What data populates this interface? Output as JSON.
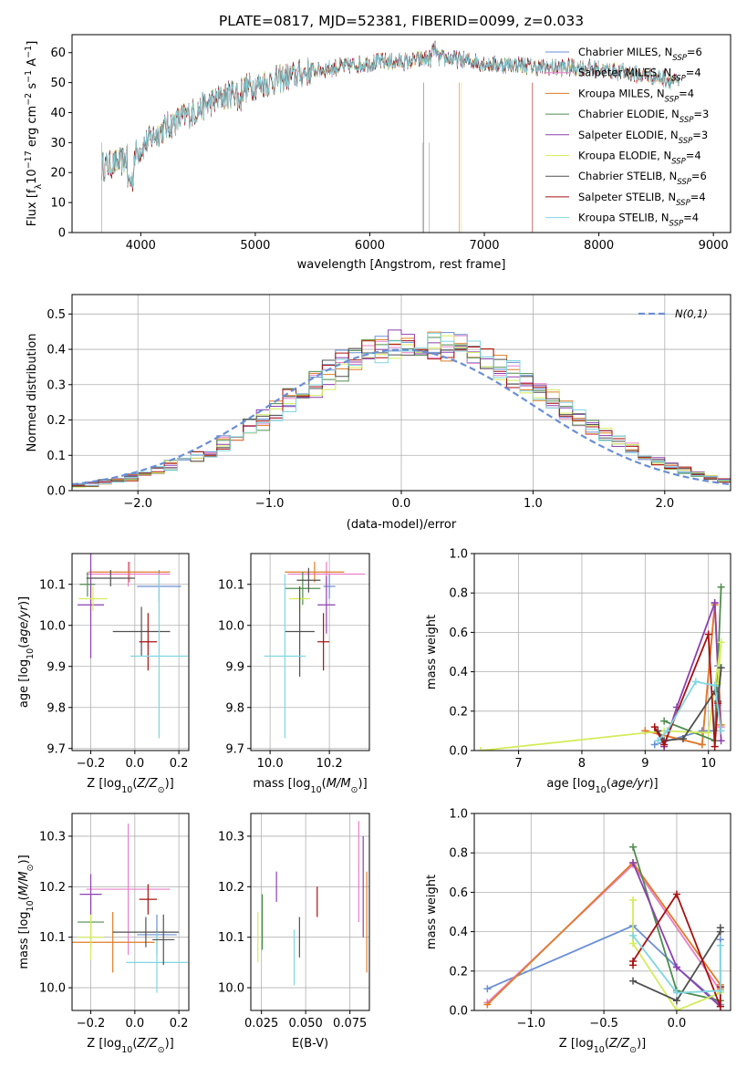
{
  "colors": {
    "chabrier_miles": "#6a8fd4",
    "salpeter_miles": "#e87fc8",
    "kroupa_miles": "#e07c24",
    "chabrier_elodie": "#4e8d4e",
    "salpeter_elodie": "#8e3fb0",
    "kroupa_elodie": "#d4ec5a",
    "chabrier_stelib": "#505050",
    "salpeter_stelib": "#a81010",
    "kroupa_stelib": "#7fd6e2"
  },
  "chart_data": [
    {
      "id": "spectrum",
      "type": "line",
      "title": "PLATE=0817, MJD=52381, FIBERID=0099, z=0.033",
      "xlabel": "wavelength [Angstrom, rest frame]",
      "ylabel_text": "Flux [f",
      "xlim": [
        3400,
        9150
      ],
      "ylim": [
        0,
        66
      ],
      "xticks": [
        4000,
        5000,
        6000,
        7000,
        8000,
        9000
      ],
      "yticks": [
        0,
        10,
        20,
        30,
        40,
        50,
        60
      ],
      "continuum_x": [
        3660,
        3800,
        3950,
        4100,
        4300,
        4500,
        4700,
        4900,
        5100,
        5300,
        5500,
        5700,
        5900,
        6100,
        6300,
        6500,
        6700,
        6900,
        7100,
        7300,
        7500,
        7700,
        7900,
        8100,
        8300,
        8500,
        8700
      ],
      "continuum_y": [
        22,
        23,
        26,
        32,
        37,
        41,
        45,
        48,
        50,
        52,
        54,
        55,
        56,
        57,
        57,
        58,
        58,
        57,
        56,
        56,
        55,
        55,
        55,
        54,
        53,
        52,
        50
      ],
      "legend": [
        {
          "label": "Chabrier MILES, N",
          "sub": "SSP",
          "value": "=6",
          "color_key": "chabrier_miles"
        },
        {
          "label": "Salpeter MILES, N",
          "sub": "SSP",
          "value": "=4",
          "color_key": "salpeter_miles"
        },
        {
          "label": "Kroupa MILES, N",
          "sub": "SSP",
          "value": "=4",
          "color_key": "kroupa_miles"
        },
        {
          "label": "Chabrier ELODIE, N",
          "sub": "SSP",
          "value": "=3",
          "color_key": "chabrier_elodie"
        },
        {
          "label": "Salpeter ELODIE, N",
          "sub": "SSP",
          "value": "=3",
          "color_key": "salpeter_elodie"
        },
        {
          "label": "Kroupa ELODIE, N",
          "sub": "SSP",
          "value": "=4",
          "color_key": "kroupa_elodie"
        },
        {
          "label": "Chabrier STELIB, N",
          "sub": "SSP",
          "value": "=6",
          "color_key": "chabrier_stelib"
        },
        {
          "label": "Salpeter STELIB, N",
          "sub": "SSP",
          "value": "=4",
          "color_key": "salpeter_stelib"
        },
        {
          "label": "Kroupa STELIB, N",
          "sub": "SSP",
          "value": "=4",
          "color_key": "kroupa_stelib"
        }
      ]
    },
    {
      "id": "residuals",
      "type": "histogram",
      "xlabel": "(data-model)/error",
      "ylabel": "Normed distribution",
      "xlim": [
        -2.5,
        2.5
      ],
      "ylim": [
        0,
        0.555
      ],
      "xticks": [
        -2,
        -1,
        0,
        1,
        2
      ],
      "yticks": [
        0.0,
        0.1,
        0.2,
        0.3,
        0.4,
        0.5
      ],
      "grid": true,
      "legend_label": "N(0,1)",
      "legend_position": "top-right",
      "bin_width": 0.1
    },
    {
      "id": "age_vs_Z",
      "type": "errorbar",
      "xlabel": "Z [log10(Z/Z⊙)]",
      "ylabel": "age [log10(age/yr)]",
      "xlim": [
        -0.285,
        0.245
      ],
      "ylim": [
        9.695,
        10.175
      ],
      "xticks": [
        -0.2,
        0.0,
        0.2
      ],
      "yticks": [
        9.7,
        9.8,
        9.9,
        10.0,
        10.1
      ],
      "points": [
        {
          "x": 0.11,
          "xerr": 0.1,
          "y": 10.095,
          "yerr": 0.04,
          "color_key": "chabrier_miles"
        },
        {
          "x": -0.03,
          "xerr": 0.19,
          "y": 10.125,
          "yerr": 0.03,
          "color_key": "salpeter_miles"
        },
        {
          "x": -0.025,
          "xerr": 0.185,
          "y": 10.13,
          "yerr": 0.025,
          "color_key": "kroupa_miles"
        },
        {
          "x": -0.215,
          "xerr": 0.035,
          "y": 10.1,
          "yerr": 0.03,
          "color_key": "chabrier_elodie"
        },
        {
          "x": -0.2,
          "xerr": 0.06,
          "y": 10.05,
          "yerr": 0.13,
          "color_key": "salpeter_elodie"
        },
        {
          "x": -0.19,
          "xerr": 0.065,
          "y": 10.065,
          "yerr": 0.03,
          "color_key": "kroupa_elodie"
        },
        {
          "x": 0.03,
          "xerr": 0.13,
          "y": 9.985,
          "yerr": 0.06,
          "color_key": "chabrier_stelib"
        },
        {
          "x": 0.06,
          "xerr": 0.04,
          "y": 9.96,
          "yerr": 0.07,
          "color_key": "salpeter_stelib"
        },
        {
          "x": 0.11,
          "xerr": 0.13,
          "y": 9.925,
          "yerr": 0.2,
          "color_key": "kroupa_stelib"
        },
        {
          "x": -0.11,
          "xerr": 0.11,
          "y": 10.115,
          "yerr": 0.02,
          "color_key": "chabrier_stelib"
        }
      ]
    },
    {
      "id": "age_vs_mass",
      "type": "errorbar",
      "xlabel": "mass [log10(M/M⊙)]",
      "xlim": [
        9.935,
        10.335
      ],
      "ylim": [
        9.695,
        10.175
      ],
      "xticks": [
        10.0,
        10.2
      ],
      "yticks": [
        9.7,
        9.8,
        9.9,
        10.0,
        10.1
      ],
      "points": [
        {
          "x": 10.2,
          "xerr": 0.02,
          "y": 10.095,
          "yerr": 0.03,
          "color_key": "chabrier_miles"
        },
        {
          "x": 10.19,
          "xerr": 0.13,
          "y": 10.125,
          "yerr": 0.03,
          "color_key": "salpeter_miles"
        },
        {
          "x": 10.15,
          "xerr": 0.1,
          "y": 10.13,
          "yerr": 0.025,
          "color_key": "kroupa_miles"
        },
        {
          "x": 10.11,
          "xerr": 0.06,
          "y": 10.09,
          "yerr": 0.04,
          "color_key": "chabrier_elodie"
        },
        {
          "x": 10.19,
          "xerr": 0.03,
          "y": 10.05,
          "yerr": 0.07,
          "color_key": "salpeter_elodie"
        },
        {
          "x": 10.1,
          "xerr": 0.035,
          "y": 10.065,
          "yerr": 0.03,
          "color_key": "kroupa_elodie"
        },
        {
          "x": 10.1,
          "xerr": 0.05,
          "y": 9.985,
          "yerr": 0.11,
          "color_key": "chabrier_stelib"
        },
        {
          "x": 10.18,
          "xerr": 0.02,
          "y": 9.96,
          "yerr": 0.07,
          "color_key": "salpeter_stelib"
        },
        {
          "x": 10.05,
          "xerr": 0.07,
          "y": 9.925,
          "yerr": 0.2,
          "color_key": "kroupa_stelib"
        },
        {
          "x": 10.13,
          "xerr": 0.04,
          "y": 10.11,
          "yerr": 0.03,
          "color_key": "chabrier_stelib"
        }
      ]
    },
    {
      "id": "weight_vs_age",
      "type": "line",
      "xlabel": "age [log10(age/yr)]",
      "ylabel": "mass weight",
      "xlim": [
        6.3,
        10.35
      ],
      "ylim": [
        0,
        1.0
      ],
      "xticks": [
        7,
        8,
        9,
        10
      ],
      "yticks": [
        0.0,
        0.2,
        0.4,
        0.6,
        0.8,
        1.0
      ],
      "series": [
        {
          "color_key": "chabrier_miles",
          "x": [
            9.15,
            9.9,
            10.1,
            10.15,
            10.2,
            10.15
          ],
          "y": [
            0.03,
            0.1,
            0.1,
            0.43,
            0.42,
            0.23
          ]
        },
        {
          "color_key": "salpeter_miles",
          "x": [
            9.0,
            9.9,
            10.1,
            10.2
          ],
          "y": [
            0.1,
            0.03,
            0.75,
            0.12
          ]
        },
        {
          "color_key": "kroupa_miles",
          "x": [
            9.0,
            9.9,
            10.1,
            10.2
          ],
          "y": [
            0.1,
            0.03,
            0.74,
            0.13
          ]
        },
        {
          "color_key": "chabrier_elodie",
          "x": [
            9.3,
            10.1,
            10.2
          ],
          "y": [
            0.15,
            0.05,
            0.83
          ]
        },
        {
          "color_key": "salpeter_elodie",
          "x": [
            9.3,
            9.5,
            10.1,
            10.2
          ],
          "y": [
            0.02,
            0.22,
            0.75,
            0.05
          ]
        },
        {
          "color_key": "kroupa_elodie",
          "x": [
            6.4,
            9.3,
            10.0,
            10.2,
            10.15
          ],
          "y": [
            0.0,
            0.1,
            0.09,
            0.55,
            0.34
          ]
        },
        {
          "color_key": "chabrier_stelib",
          "x": [
            9.2,
            9.3,
            9.6,
            10.1,
            10.15,
            10.2
          ],
          "y": [
            0.1,
            0.05,
            0.06,
            0.3,
            0.25,
            0.42
          ]
        },
        {
          "color_key": "salpeter_stelib",
          "x": [
            9.15,
            9.3,
            10.0,
            10.1,
            10.15
          ],
          "y": [
            0.12,
            0.03,
            0.59,
            0.02,
            0.24
          ]
        },
        {
          "color_key": "kroupa_stelib",
          "x": [
            9.2,
            9.35,
            9.8,
            10.1,
            10.2
          ],
          "y": [
            0.05,
            0.1,
            0.35,
            0.33,
            0.1
          ]
        }
      ]
    },
    {
      "id": "mass_vs_Z",
      "type": "errorbar",
      "xlabel": "Z [log10(Z/Z⊙)]",
      "ylabel": "mass [log10(M/M⊙)]",
      "xlim": [
        -0.285,
        0.245
      ],
      "ylim": [
        9.955,
        10.345
      ],
      "xticks": [
        -0.2,
        0.0,
        0.2
      ],
      "yticks": [
        10.0,
        10.1,
        10.2,
        10.3
      ],
      "points": [
        {
          "x": 0.1,
          "xerr": 0.09,
          "y": 10.105,
          "yerr": 0.04,
          "color_key": "chabrier_miles"
        },
        {
          "x": -0.03,
          "xerr": 0.19,
          "y": 10.195,
          "yerr": 0.13,
          "color_key": "salpeter_miles"
        },
        {
          "x": -0.1,
          "xerr": 0.19,
          "y": 10.09,
          "yerr": 0.06,
          "color_key": "kroupa_miles"
        },
        {
          "x": -0.2,
          "xerr": 0.06,
          "y": 10.13,
          "yerr": 0.05,
          "color_key": "chabrier_elodie"
        },
        {
          "x": -0.2,
          "xerr": 0.05,
          "y": 10.185,
          "yerr": 0.04,
          "color_key": "salpeter_elodie"
        },
        {
          "x": -0.2,
          "xerr": 0.06,
          "y": 10.1,
          "yerr": 0.045,
          "color_key": "kroupa_elodie"
        },
        {
          "x": 0.05,
          "xerr": 0.15,
          "y": 10.11,
          "yerr": 0.03,
          "color_key": "chabrier_stelib"
        },
        {
          "x": 0.06,
          "xerr": 0.04,
          "y": 10.175,
          "yerr": 0.03,
          "color_key": "salpeter_stelib"
        },
        {
          "x": 0.1,
          "xerr": 0.14,
          "y": 10.05,
          "yerr": 0.06,
          "color_key": "kroupa_stelib"
        },
        {
          "x": 0.13,
          "xerr": 0.05,
          "y": 10.095,
          "yerr": 0.05,
          "color_key": "chabrier_stelib"
        }
      ]
    },
    {
      "id": "mass_vs_ebv",
      "type": "errorbar",
      "xlabel": "E(B-V)",
      "xlim": [
        0.019,
        0.086
      ],
      "ylim": [
        9.955,
        10.345
      ],
      "xticks": [
        0.025,
        0.05,
        0.075
      ],
      "yticks": [
        10.0,
        10.1,
        10.2,
        10.3
      ],
      "points": [
        {
          "x": 0.023,
          "y": 10.1,
          "yerr": 0.05,
          "color_key": "kroupa_elodie"
        },
        {
          "x": 0.0255,
          "y": 10.13,
          "yerr": 0.055,
          "color_key": "chabrier_elodie"
        },
        {
          "x": 0.0335,
          "y": 10.2,
          "yerr": 0.03,
          "color_key": "salpeter_elodie"
        },
        {
          "x": 0.0435,
          "y": 10.06,
          "yerr": 0.055,
          "color_key": "kroupa_stelib"
        },
        {
          "x": 0.0465,
          "y": 10.1,
          "yerr": 0.04,
          "color_key": "chabrier_stelib"
        },
        {
          "x": 0.0565,
          "y": 10.17,
          "yerr": 0.03,
          "color_key": "salpeter_stelib"
        },
        {
          "x": 0.08,
          "y": 10.23,
          "yerr": 0.1,
          "color_key": "salpeter_miles"
        },
        {
          "x": 0.0825,
          "y": 10.2,
          "yerr": 0.1,
          "color_key": "salpeter_elodie"
        },
        {
          "x": 0.0845,
          "y": 10.13,
          "yerr": 0.1,
          "color_key": "kroupa_miles"
        }
      ]
    },
    {
      "id": "weight_vs_Z",
      "type": "line",
      "xlabel": "Z [log10(Z/Z⊙)]",
      "ylabel": "mass weight",
      "xlim": [
        -1.39,
        0.37
      ],
      "ylim": [
        0,
        1.0
      ],
      "xticks": [
        -1.0,
        -0.5,
        0.0
      ],
      "yticks": [
        0.0,
        0.2,
        0.4,
        0.6,
        0.8,
        1.0
      ],
      "series": [
        {
          "color_key": "chabrier_miles",
          "x": [
            -1.3,
            -0.3,
            0.0,
            0.3,
            0.3
          ],
          "y": [
            0.11,
            0.43,
            0.22,
            0.03,
            0.36
          ]
        },
        {
          "color_key": "salpeter_miles",
          "x": [
            -1.3,
            -0.3,
            0.3,
            0.3
          ],
          "y": [
            0.04,
            0.74,
            0.1,
            0.12
          ]
        },
        {
          "color_key": "kroupa_miles",
          "x": [
            -1.3,
            -0.3,
            0.3,
            0.3
          ],
          "y": [
            0.03,
            0.75,
            0.13,
            0.11
          ]
        },
        {
          "color_key": "chabrier_elodie",
          "x": [
            -0.3,
            0.0,
            0.3
          ],
          "y": [
            0.83,
            0.1,
            0.05
          ]
        },
        {
          "color_key": "salpeter_elodie",
          "x": [
            -0.3,
            0.0,
            0.3
          ],
          "y": [
            0.75,
            0.22,
            0.02
          ]
        },
        {
          "color_key": "kroupa_elodie",
          "x": [
            -0.3,
            -0.3,
            0.0,
            0.3,
            0.3
          ],
          "y": [
            0.56,
            0.34,
            0.0,
            0.09,
            0.1
          ]
        },
        {
          "color_key": "chabrier_stelib",
          "x": [
            -0.3,
            0.0,
            0.3,
            0.3
          ],
          "y": [
            0.15,
            0.05,
            0.4,
            0.42
          ]
        },
        {
          "color_key": "salpeter_stelib",
          "x": [
            -0.3,
            -0.3,
            0.0,
            0.3,
            0.3
          ],
          "y": [
            0.23,
            0.25,
            0.59,
            0.02,
            0.12
          ]
        },
        {
          "color_key": "kroupa_stelib",
          "x": [
            -0.3,
            0.0,
            0.3,
            0.3
          ],
          "y": [
            0.38,
            0.09,
            0.1,
            0.33
          ]
        }
      ]
    }
  ]
}
